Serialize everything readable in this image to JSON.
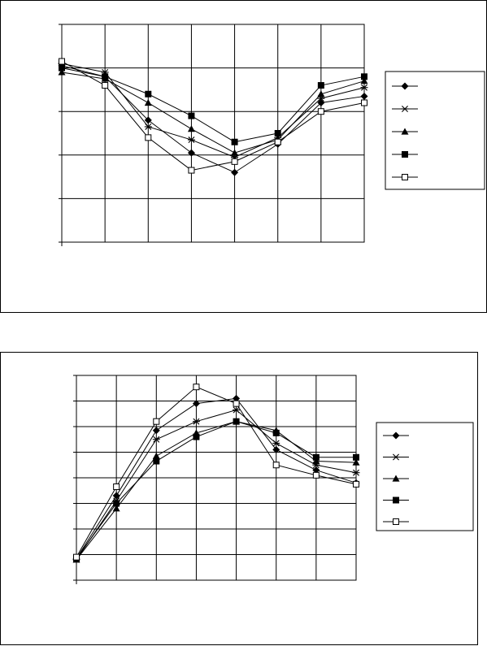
{
  "chart_data": [
    {
      "type": "line",
      "title": "",
      "xlabel": "",
      "ylabel": "",
      "x_count": 8,
      "ylim": [
        0,
        5
      ],
      "grid": true,
      "legend": "right",
      "series": [
        {
          "marker": "diamond",
          "values": [
            4.05,
            3.8,
            2.8,
            2.05,
            1.6,
            2.25,
            3.2,
            3.35
          ]
        },
        {
          "marker": "asterisk",
          "values": [
            4.1,
            3.9,
            2.65,
            2.35,
            1.95,
            2.4,
            3.3,
            3.55
          ]
        },
        {
          "marker": "triangle",
          "values": [
            3.9,
            3.75,
            3.2,
            2.6,
            2.05,
            2.35,
            3.4,
            3.7
          ]
        },
        {
          "marker": "square-filled",
          "values": [
            4.0,
            3.8,
            3.4,
            2.9,
            2.3,
            2.5,
            3.6,
            3.8
          ]
        },
        {
          "marker": "square-open",
          "values": [
            4.15,
            3.6,
            2.4,
            1.65,
            1.85,
            2.3,
            3.0,
            3.2
          ]
        }
      ]
    },
    {
      "type": "line",
      "title": "",
      "xlabel": "",
      "ylabel": "",
      "x_count": 8,
      "ylim": [
        0,
        8
      ],
      "grid": true,
      "legend": "right",
      "series": [
        {
          "marker": "diamond",
          "values": [
            0.85,
            3.3,
            5.85,
            6.9,
            7.1,
            5.1,
            4.3,
            3.8
          ]
        },
        {
          "marker": "asterisk",
          "values": [
            0.8,
            3.1,
            5.5,
            6.2,
            6.65,
            5.35,
            4.5,
            4.2
          ]
        },
        {
          "marker": "triangle",
          "values": [
            0.8,
            2.8,
            4.85,
            5.75,
            6.2,
            5.85,
            4.65,
            4.6
          ]
        },
        {
          "marker": "square-filled",
          "values": [
            0.85,
            3.0,
            4.65,
            5.6,
            6.2,
            5.75,
            4.8,
            4.8
          ]
        },
        {
          "marker": "square-open",
          "values": [
            0.9,
            3.65,
            6.2,
            7.55,
            6.9,
            4.5,
            4.1,
            3.75
          ]
        }
      ]
    }
  ]
}
